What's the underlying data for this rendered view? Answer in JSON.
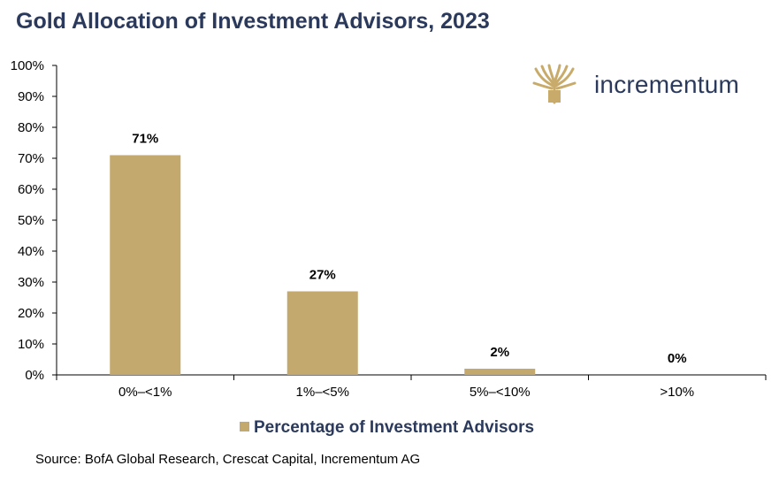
{
  "title": "Gold Allocation of Investment Advisors, 2023",
  "logo": {
    "text": "incrementum",
    "icon": "tree-icon",
    "color": "#c8ab6a"
  },
  "source": "Source: BofA Global Research, Crescat Capital, Incrementum AG",
  "colors": {
    "bar": "#c3a96e",
    "title": "#2b3a5c",
    "axis": "#000000"
  },
  "chart_data": {
    "type": "bar",
    "title": "Gold Allocation of Investment Advisors, 2023",
    "categories": [
      "0%–<1%",
      "1%–<5%",
      "5%–<10%",
      ">10%"
    ],
    "series": [
      {
        "name": "Percentage of Investment Advisors",
        "values": [
          71,
          27,
          2,
          0
        ]
      }
    ],
    "data_labels": [
      "71%",
      "27%",
      "2%",
      "0%"
    ],
    "ylim": [
      0,
      100
    ],
    "yticks": [
      "0%",
      "10%",
      "20%",
      "30%",
      "40%",
      "50%",
      "60%",
      "70%",
      "80%",
      "90%",
      "100%"
    ],
    "xlabel": "",
    "ylabel": "",
    "grid": false,
    "legend": "bottom"
  }
}
